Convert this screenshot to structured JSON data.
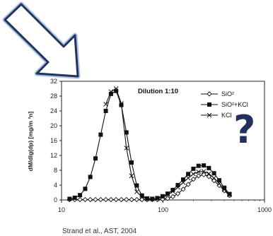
{
  "chart_data": {
    "type": "line",
    "x_scale": "log",
    "xlim": [
      10,
      1000
    ],
    "ylim": [
      0,
      32
    ],
    "x_ticks": [
      "10",
      "100",
      "1000"
    ],
    "y_ticks": [
      "0",
      "4",
      "8",
      "12",
      "16",
      "20",
      "24",
      "28",
      "32"
    ],
    "ylabel": "dM/dlg(dp) [mg/m ³n]",
    "title": "",
    "annotation": "Dilution 1:10",
    "legend_position": "top-right",
    "series": [
      {
        "name": "SiO²",
        "marker": "diamond",
        "x": [
          12,
          13.5,
          15.2,
          17.1,
          19.2,
          21.6,
          24.3,
          27.3,
          30.7,
          34.5,
          38.8,
          43.6,
          49,
          55.1,
          62,
          69.7,
          78.3,
          88,
          99,
          111,
          125,
          140,
          158,
          177,
          199,
          224,
          252,
          283,
          318,
          358,
          402,
          452
        ],
        "y": [
          0.1,
          0.1,
          0.1,
          0.1,
          0.1,
          0.1,
          0.1,
          0.1,
          0.1,
          0.1,
          0.1,
          0.1,
          0.1,
          0.1,
          0.1,
          0.1,
          0.1,
          0.1,
          0.2,
          0.4,
          0.9,
          1.7,
          2.9,
          4.2,
          5.6,
          6.5,
          6.8,
          6.3,
          5.2,
          3.9,
          2.5,
          1.2
        ]
      },
      {
        "name": "SiO²+KCl",
        "marker": "square",
        "x": [
          12,
          13.5,
          15.2,
          17.1,
          19.2,
          21.6,
          24.3,
          27.3,
          30.7,
          34.5,
          38.8,
          43.6,
          49,
          55.1,
          62,
          69.7,
          78.3,
          88,
          99,
          111,
          125,
          140,
          158,
          177,
          199,
          224,
          252,
          283,
          318,
          358,
          402,
          452
        ],
        "y": [
          0.3,
          0.6,
          1.3,
          3,
          6.2,
          11.2,
          17.6,
          24,
          28.6,
          29.4,
          25.6,
          18.2,
          10.1,
          3.9,
          1.2,
          0.4,
          0.3,
          0.5,
          1,
          1.7,
          2.7,
          4,
          5.5,
          7,
          8.4,
          9.2,
          9.3,
          8.6,
          7.2,
          5.3,
          3.3,
          1.6
        ]
      },
      {
        "name": "KCl",
        "marker": "x",
        "x": [
          27.3,
          30.7,
          34.5,
          38.8,
          43.6,
          49,
          55.1,
          62,
          69.7,
          78.3,
          88,
          99,
          111,
          125,
          140,
          158,
          177,
          199,
          224,
          252,
          283,
          318,
          358,
          402,
          452
        ],
        "y": [
          25.8,
          29.2,
          30,
          26,
          14,
          6.5,
          2.2,
          0.8,
          0.3,
          0.3,
          0.4,
          0.8,
          1.4,
          2.3,
          3.4,
          4.7,
          5.9,
          7,
          7.6,
          7.7,
          7.1,
          5.9,
          4.4,
          2.8,
          1.4
        ]
      }
    ]
  },
  "caption": "Strand et al., AST, 2004",
  "question_mark": "?",
  "colors": {
    "arrow_stroke": "#20345f",
    "arrow_glow": "#aebfe0",
    "question_mark": "#22305e",
    "series": "#111111"
  }
}
